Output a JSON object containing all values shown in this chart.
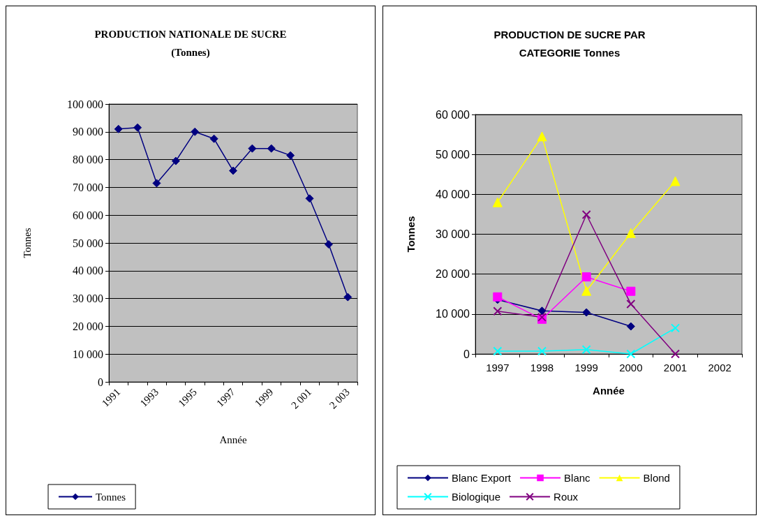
{
  "chart_data": [
    {
      "type": "line",
      "title": "PRODUCTION NATIONALE DE SUCRE\n(Tonnes)",
      "xlabel": "Année",
      "ylabel": "Tonnes",
      "categories": [
        "1991",
        null,
        "1993",
        null,
        "1995",
        null,
        "1997",
        null,
        "1999",
        null,
        "2 001",
        null,
        "2 003"
      ],
      "series": [
        {
          "name": "Tonnes",
          "color": "#000080",
          "values": [
            91000,
            91500,
            71500,
            79500,
            90000,
            87500,
            76000,
            84000,
            84000,
            81500,
            66000,
            49500,
            30500
          ]
        }
      ],
      "ylim": [
        0,
        100000
      ],
      "yticks": [
        {
          "value": 0,
          "label": "0"
        },
        {
          "value": 10000,
          "label": "10 000"
        },
        {
          "value": 20000,
          "label": "20 000"
        },
        {
          "value": 30000,
          "label": "30 000"
        },
        {
          "value": 40000,
          "label": "40 000"
        },
        {
          "value": 50000,
          "label": "50 000"
        },
        {
          "value": 60000,
          "label": "60 000"
        },
        {
          "value": 70000,
          "label": "70 000"
        },
        {
          "value": 80000,
          "label": "80 000"
        },
        {
          "value": 90000,
          "label": "90 000"
        },
        {
          "value": 100000,
          "label": "100 000"
        }
      ],
      "grid": "y",
      "legend": "bottom",
      "marker": "diamond"
    },
    {
      "type": "line",
      "title": "PRODUCTION DE SUCRE PAR\nCATEGORIE Tonnes",
      "xlabel": "Année",
      "ylabel": "Tonnes",
      "categories": [
        "1997",
        "1998",
        "1999",
        "2000",
        "2001",
        "2002"
      ],
      "series": [
        {
          "name": "Blanc Export",
          "color": "#000080",
          "marker": "diamond",
          "values": [
            13600,
            10800,
            10400,
            6900,
            null,
            null
          ]
        },
        {
          "name": "Blanc",
          "color": "#ff00ff",
          "marker": "square",
          "values": [
            14300,
            8700,
            19300,
            15700,
            null,
            null
          ]
        },
        {
          "name": "Blond",
          "color": "#ffff00",
          "marker": "triangle",
          "values": [
            38000,
            54500,
            15800,
            30300,
            43300,
            null
          ]
        },
        {
          "name": "Biologique",
          "color": "#00ffff",
          "marker": "cross",
          "values": [
            700,
            700,
            1100,
            0,
            6500,
            null
          ]
        },
        {
          "name": "Roux",
          "color": "#800080",
          "marker": "cross",
          "values": [
            10700,
            9200,
            34900,
            12500,
            0,
            null
          ]
        }
      ],
      "ylim": [
        0,
        60000
      ],
      "yticks": [
        {
          "value": 0,
          "label": "0"
        },
        {
          "value": 10000,
          "label": "10 000"
        },
        {
          "value": 20000,
          "label": "20 000"
        },
        {
          "value": 30000,
          "label": "30 000"
        },
        {
          "value": 40000,
          "label": "40 000"
        },
        {
          "value": 50000,
          "label": "50 000"
        },
        {
          "value": 60000,
          "label": "60 000"
        }
      ],
      "grid": "y",
      "legend": "bottom"
    }
  ]
}
